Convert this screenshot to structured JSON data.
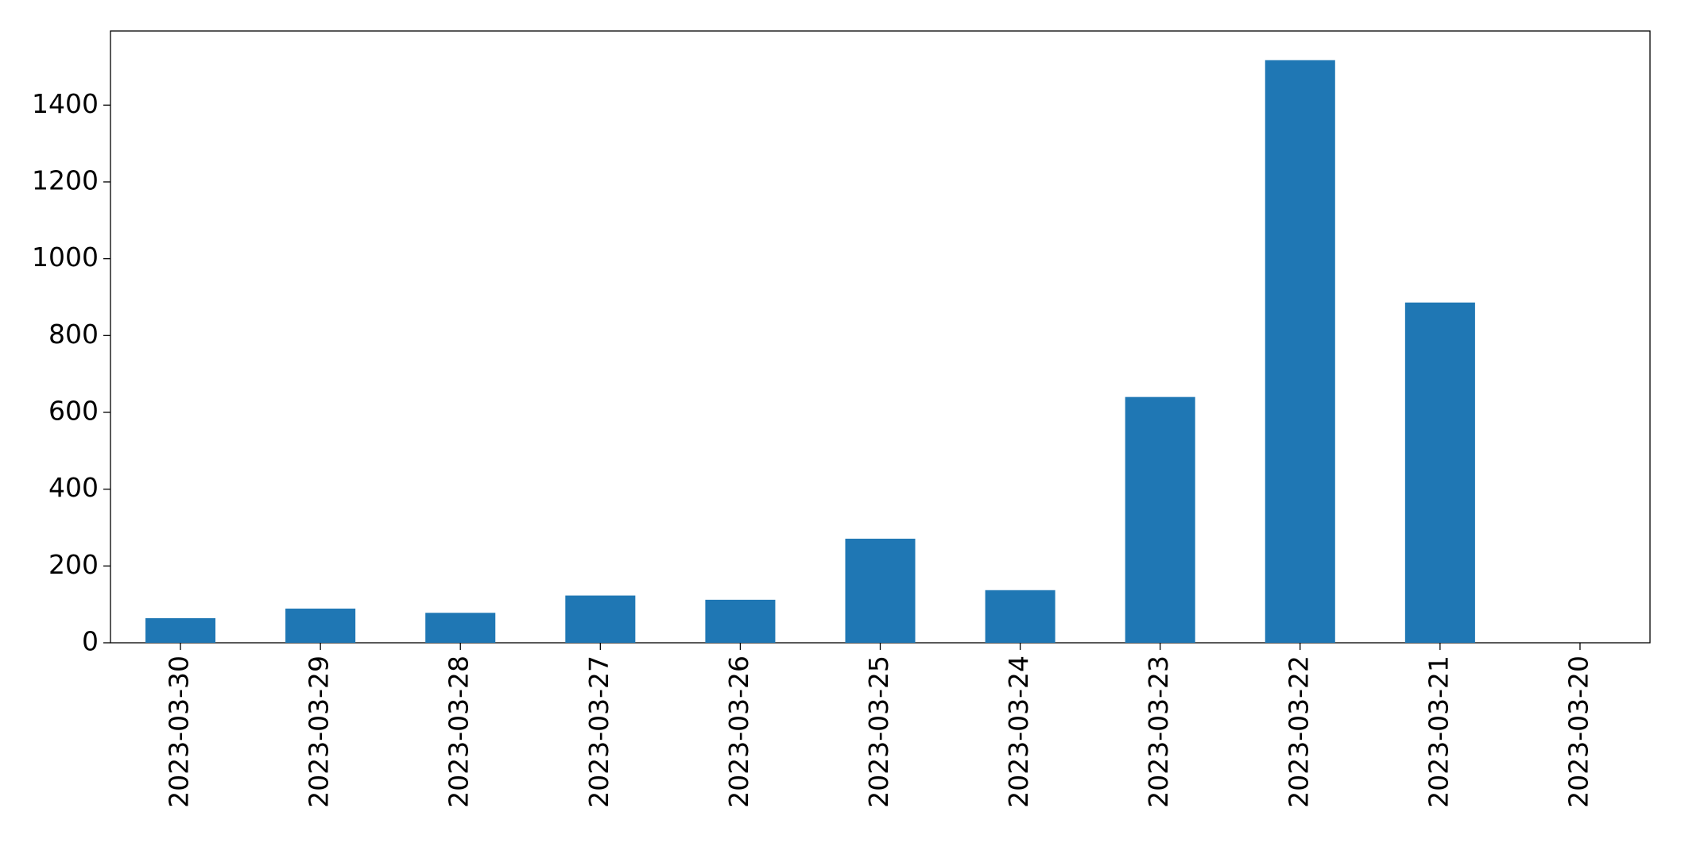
{
  "chart_data": {
    "type": "bar",
    "categories": [
      "2023-03-30",
      "2023-03-29",
      "2023-03-28",
      "2023-03-27",
      "2023-03-26",
      "2023-03-25",
      "2023-03-24",
      "2023-03-23",
      "2023-03-22",
      "2023-03-21",
      "2023-03-20"
    ],
    "values": [
      64,
      89,
      78,
      123,
      112,
      271,
      137,
      640,
      1517,
      886,
      0
    ],
    "color": "#1f77b4",
    "ylim": [
      0,
      1593
    ],
    "yticks": [
      0,
      200,
      400,
      600,
      800,
      1000,
      1200,
      1400
    ],
    "grid": false
  }
}
